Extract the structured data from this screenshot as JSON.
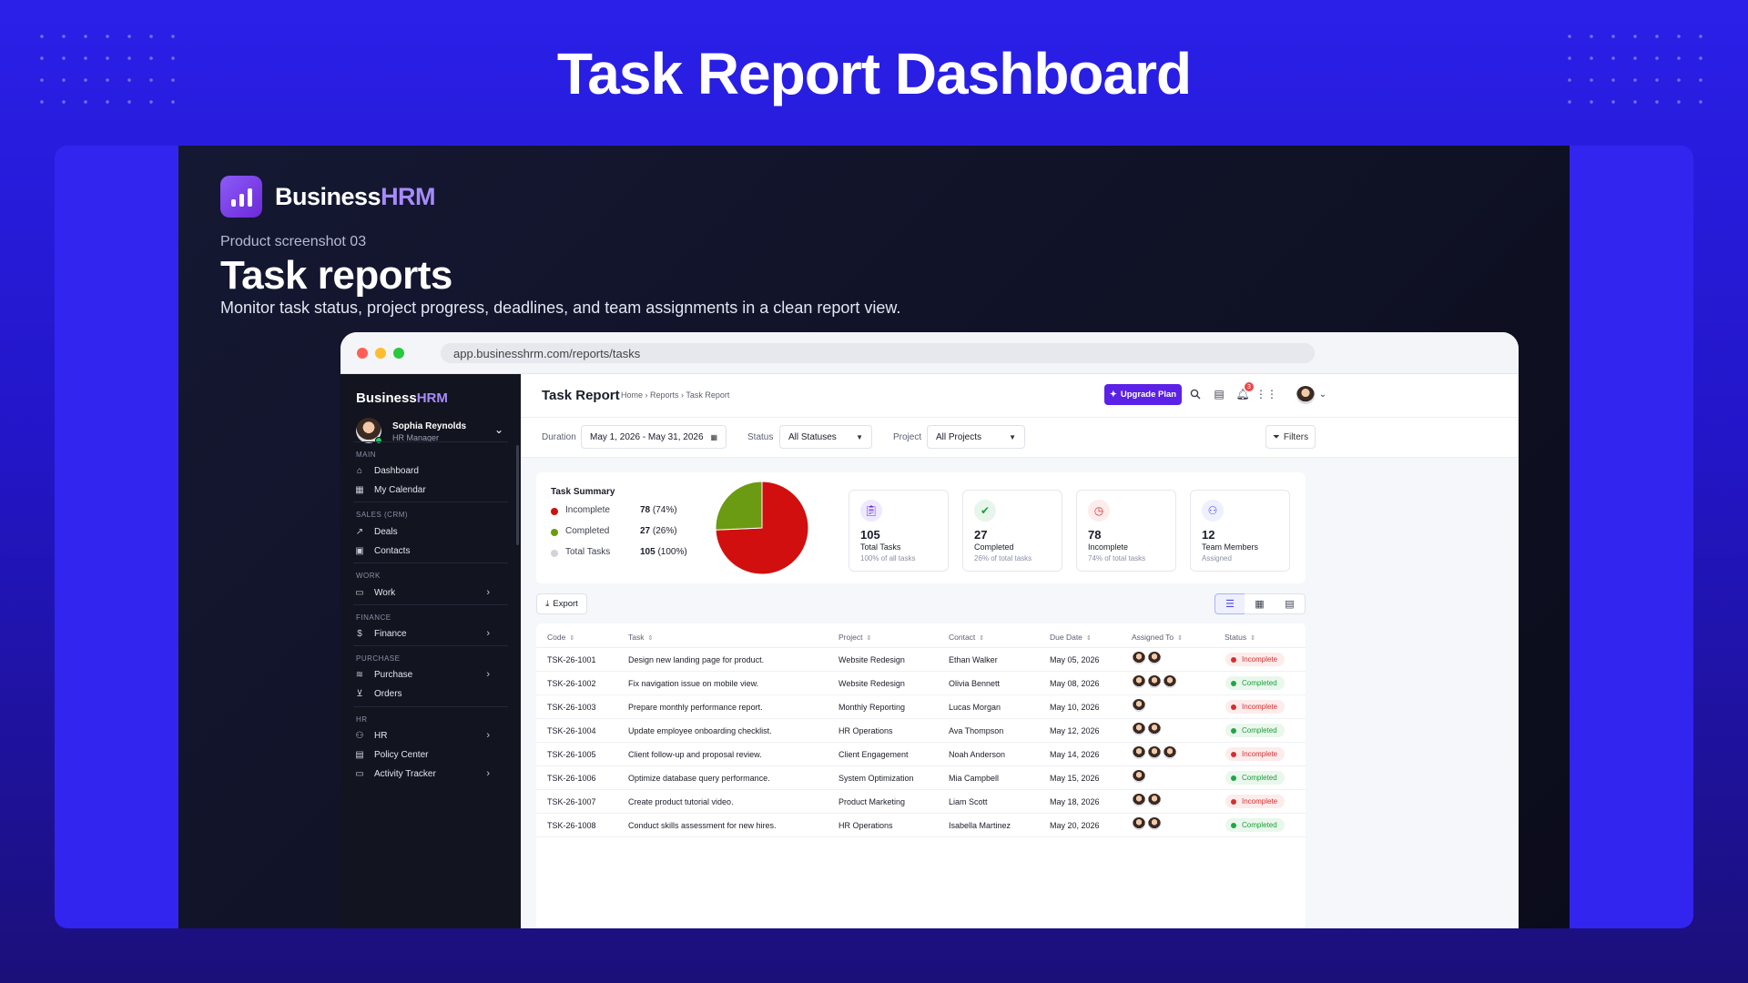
{
  "page": {
    "title": "Task Report Dashboard"
  },
  "promo": {
    "brand_prefix": "Business",
    "brand_accent": "HRM",
    "subtitle": "Product screenshot 03",
    "title": "Task reports",
    "description": "Monitor task status, project progress, deadlines, and team assignments in a clean report view."
  },
  "browser": {
    "url": "app.businesshrm.com/reports/tasks"
  },
  "sidebar": {
    "brand_prefix": "Business",
    "brand_accent": "HRM",
    "user": {
      "name": "Sophia Reynolds",
      "role": "HR Manager"
    },
    "sections": {
      "main": "MAIN",
      "sales": "SALES (CRM)",
      "work": "WORK",
      "finance": "FINANCE",
      "purchase": "PURCHASE",
      "hr": "HR"
    },
    "items": {
      "dashboard": "Dashboard",
      "calendar": "My Calendar",
      "deals": "Deals",
      "contacts": "Contacts",
      "work": "Work",
      "finance": "Finance",
      "purchase": "Purchase",
      "orders": "Orders",
      "hr": "HR",
      "policy": "Policy Center",
      "activity": "Activity Tracker"
    }
  },
  "topbar": {
    "title": "Task Report",
    "breadcrumb": "Home › Reports › Task Report",
    "upgrade_label": "Upgrade Plan",
    "notification_count": "3"
  },
  "filters": {
    "duration_label": "Duration",
    "duration_value": "May 1, 2026 - May 31, 2026",
    "status_label": "Status",
    "status_value": "All Statuses",
    "project_label": "Project",
    "project_value": "All Projects",
    "filters_label": "Filters"
  },
  "summary": {
    "title": "Task Summary",
    "rows": [
      {
        "label": "Incomplete",
        "count": "78",
        "pct": "(74%)"
      },
      {
        "label": "Completed",
        "count": "27",
        "pct": "(26%)"
      },
      {
        "label": "Total Tasks",
        "count": "105",
        "pct": "(100%)"
      }
    ],
    "colors": {
      "incomplete": "#d10f0f",
      "completed": "#6a9b12",
      "total": "#d2d4da"
    }
  },
  "chart_data": {
    "type": "pie",
    "categories": [
      "Incomplete",
      "Completed"
    ],
    "values": [
      78,
      27
    ]
  },
  "cards": [
    {
      "icon": "clipboard-icon",
      "value": "105",
      "label": "Total Tasks",
      "sub": "100% of all tasks"
    },
    {
      "icon": "check-icon",
      "value": "27",
      "label": "Completed",
      "sub": "26% of total tasks"
    },
    {
      "icon": "clock-icon",
      "value": "78",
      "label": "Incomplete",
      "sub": "74% of total tasks"
    },
    {
      "icon": "team-icon",
      "value": "12",
      "label": "Team Members",
      "sub": "Assigned"
    }
  ],
  "toolbar": {
    "export_label": "Export"
  },
  "table": {
    "headers": [
      "Code",
      "Task",
      "Project",
      "Contact",
      "Due Date",
      "Assigned To",
      "Status"
    ],
    "rows": [
      {
        "code": "TSK-26-1001",
        "task": "Design new landing page for product.",
        "project": "Website Redesign",
        "contact": "Ethan Walker",
        "due": "May 05, 2026",
        "assignees": 2,
        "status": "Incomplete"
      },
      {
        "code": "TSK-26-1002",
        "task": "Fix navigation issue on mobile view.",
        "project": "Website Redesign",
        "contact": "Olivia Bennett",
        "due": "May 08, 2026",
        "assignees": 3,
        "status": "Completed"
      },
      {
        "code": "TSK-26-1003",
        "task": "Prepare monthly performance report.",
        "project": "Monthly Reporting",
        "contact": "Lucas Morgan",
        "due": "May 10, 2026",
        "assignees": 1,
        "status": "Incomplete"
      },
      {
        "code": "TSK-26-1004",
        "task": "Update employee onboarding checklist.",
        "project": "HR Operations",
        "contact": "Ava Thompson",
        "due": "May 12, 2026",
        "assignees": 2,
        "status": "Completed"
      },
      {
        "code": "TSK-26-1005",
        "task": "Client follow-up and proposal review.",
        "project": "Client Engagement",
        "contact": "Noah Anderson",
        "due": "May 14, 2026",
        "assignees": 3,
        "status": "Incomplete"
      },
      {
        "code": "TSK-26-1006",
        "task": "Optimize database query performance.",
        "project": "System Optimization",
        "contact": "Mia Campbell",
        "due": "May 15, 2026",
        "assignees": 1,
        "status": "Completed"
      },
      {
        "code": "TSK-26-1007",
        "task": "Create product tutorial video.",
        "project": "Product Marketing",
        "contact": "Liam Scott",
        "due": "May 18, 2026",
        "assignees": 2,
        "status": "Incomplete"
      },
      {
        "code": "TSK-26-1008",
        "task": "Conduct skills assessment for new hires.",
        "project": "HR Operations",
        "contact": "Isabella Martinez",
        "due": "May 20, 2026",
        "assignees": 2,
        "status": "Completed"
      }
    ]
  }
}
